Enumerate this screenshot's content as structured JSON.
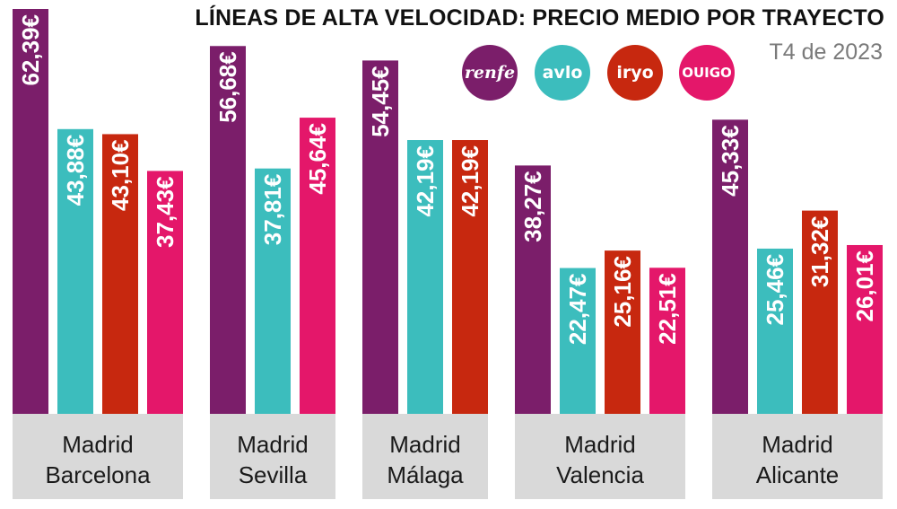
{
  "title": "LÍNEAS DE ALTA VELOCIDAD: PRECIO MEDIO POR TRAYECTO",
  "subtitle": "T4 de 2023",
  "brands": [
    {
      "label": "renfe",
      "color": "#7B1E6A"
    },
    {
      "label": "avlo",
      "color": "#3CBDBD"
    },
    {
      "label": "iryo",
      "color": "#C7280F"
    },
    {
      "label": "OUIGO",
      "color": "#E4176A"
    }
  ],
  "chart_data": {
    "type": "bar",
    "title": "LÍNEAS DE ALTA VELOCIDAD: PRECIO MEDIO POR TRAYECTO",
    "subtitle": "T4 de 2023",
    "categories": [
      [
        "Madrid",
        "Barcelona"
      ],
      [
        "Madrid",
        "Sevilla"
      ],
      [
        "Madrid",
        "Málaga"
      ],
      [
        "Madrid",
        "Valencia"
      ],
      [
        "Madrid",
        "Alicante"
      ]
    ],
    "series": [
      {
        "name": "renfe",
        "color": "#7B1E6A",
        "values": [
          62.39,
          56.68,
          54.45,
          38.27,
          45.33
        ],
        "labels": [
          "62,39€",
          "56,68€",
          "54,45€",
          "38,27€",
          "45,33€"
        ]
      },
      {
        "name": "avlo",
        "color": "#3CBDBD",
        "values": [
          43.88,
          37.81,
          42.19,
          22.47,
          25.46
        ],
        "labels": [
          "43,88€",
          "37,81€",
          "42,19€",
          "22,47€",
          "25,46€"
        ]
      },
      {
        "name": "iryo",
        "color": "#C7280F",
        "values": [
          43.1,
          null,
          42.19,
          25.16,
          31.32
        ],
        "labels": [
          "43,10€",
          null,
          "42,19€",
          "25,16€",
          "31,32€"
        ]
      },
      {
        "name": "OUIGO",
        "color": "#E4176A",
        "values": [
          37.43,
          45.64,
          null,
          22.51,
          26.01
        ],
        "labels": [
          "37,43€",
          "45,64€",
          null,
          "22,51€",
          "26,01€"
        ]
      }
    ],
    "ylim": [
      0,
      62.39
    ],
    "grid": false,
    "legend": "top-right",
    "label_band_color": "#D9D9D9"
  }
}
